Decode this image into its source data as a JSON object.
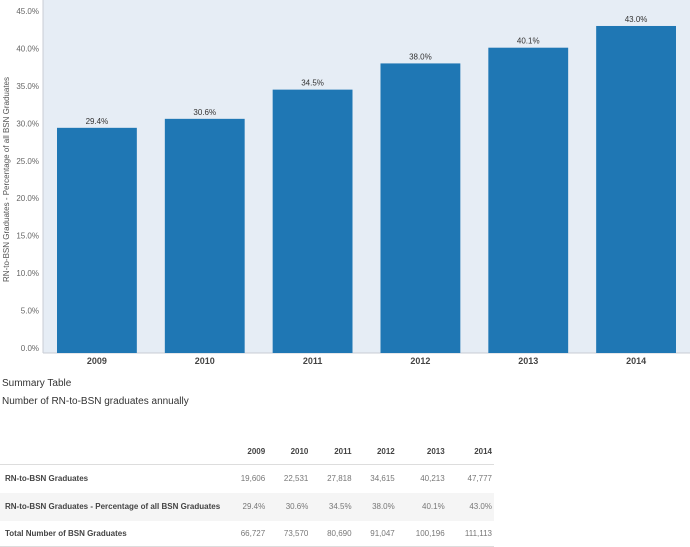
{
  "chart_data": {
    "type": "bar",
    "categories": [
      "2009",
      "2010",
      "2011",
      "2012",
      "2013",
      "2014"
    ],
    "values": [
      29.4,
      30.6,
      34.5,
      38.0,
      40.1,
      43.0
    ],
    "data_labels": [
      "29.4%",
      "30.6%",
      "34.5%",
      "38.0%",
      "40.1%",
      "43.0%"
    ],
    "ylabel": "RN-to-BSN Graduates - Percentage of all BSN Graduates",
    "xlabel": "",
    "ylim": [
      0,
      45
    ],
    "yticks": [
      "0.0%",
      "5.0%",
      "10.0%",
      "15.0%",
      "20.0%",
      "25.0%",
      "30.0%",
      "35.0%",
      "40.0%",
      "45.0%"
    ],
    "grid": false,
    "bar_color": "#1f77b4",
    "background": "#e6edf5"
  },
  "summary": {
    "title": "Summary Table",
    "subtitle": "Number of RN-to-BSN graduates annually",
    "columns": [
      "2009",
      "2010",
      "2011",
      "2012",
      "2013",
      "2014"
    ],
    "rows": [
      {
        "label": "RN-to-BSN Graduates",
        "values": [
          "19,606",
          "22,531",
          "27,818",
          "34,615",
          "40,213",
          "47,777"
        ]
      },
      {
        "label": "RN-to-BSN Graduates - Percentage of all BSN Graduates",
        "values": [
          "29.4%",
          "30.6%",
          "34.5%",
          "38.0%",
          "40.1%",
          "43.0%"
        ]
      },
      {
        "label": "Total Number of BSN Graduates",
        "values": [
          "66,727",
          "73,570",
          "80,690",
          "91,047",
          "100,196",
          "111,113"
        ]
      }
    ]
  }
}
